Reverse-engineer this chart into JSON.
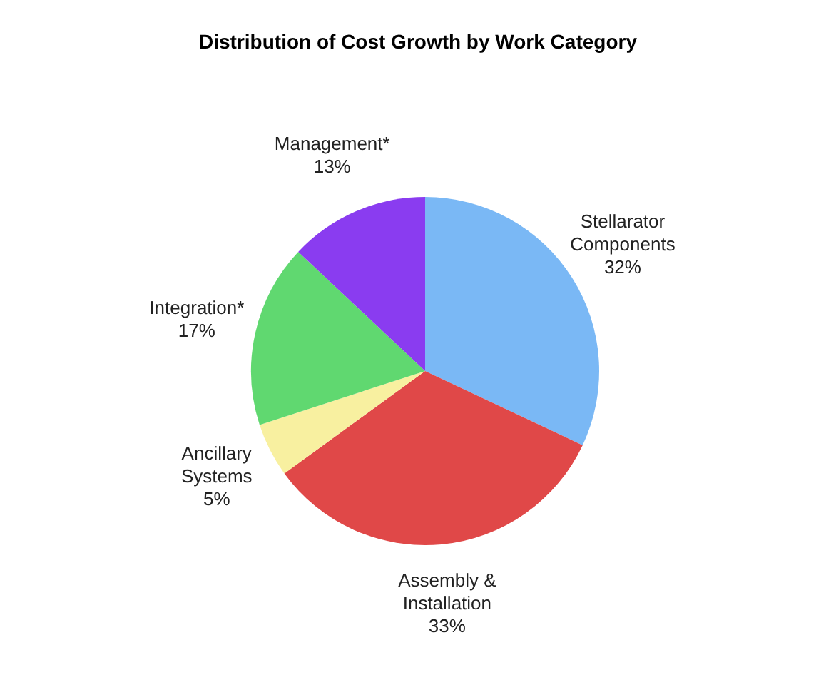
{
  "chart_data": {
    "type": "pie",
    "title": "Distribution of Cost Growth by Work Category",
    "categories": [
      "Stellarator Components",
      "Assembly & Installation",
      "Ancillary Systems",
      "Integration*",
      "Management*"
    ],
    "values": [
      32,
      33,
      5,
      17,
      13
    ],
    "colors": [
      "#7ab8f5",
      "#e04848",
      "#f8f0a0",
      "#60d870",
      "#8a3cf0"
    ],
    "value_labels": [
      "32%",
      "33%",
      "5%",
      "17%",
      "13%"
    ]
  }
}
